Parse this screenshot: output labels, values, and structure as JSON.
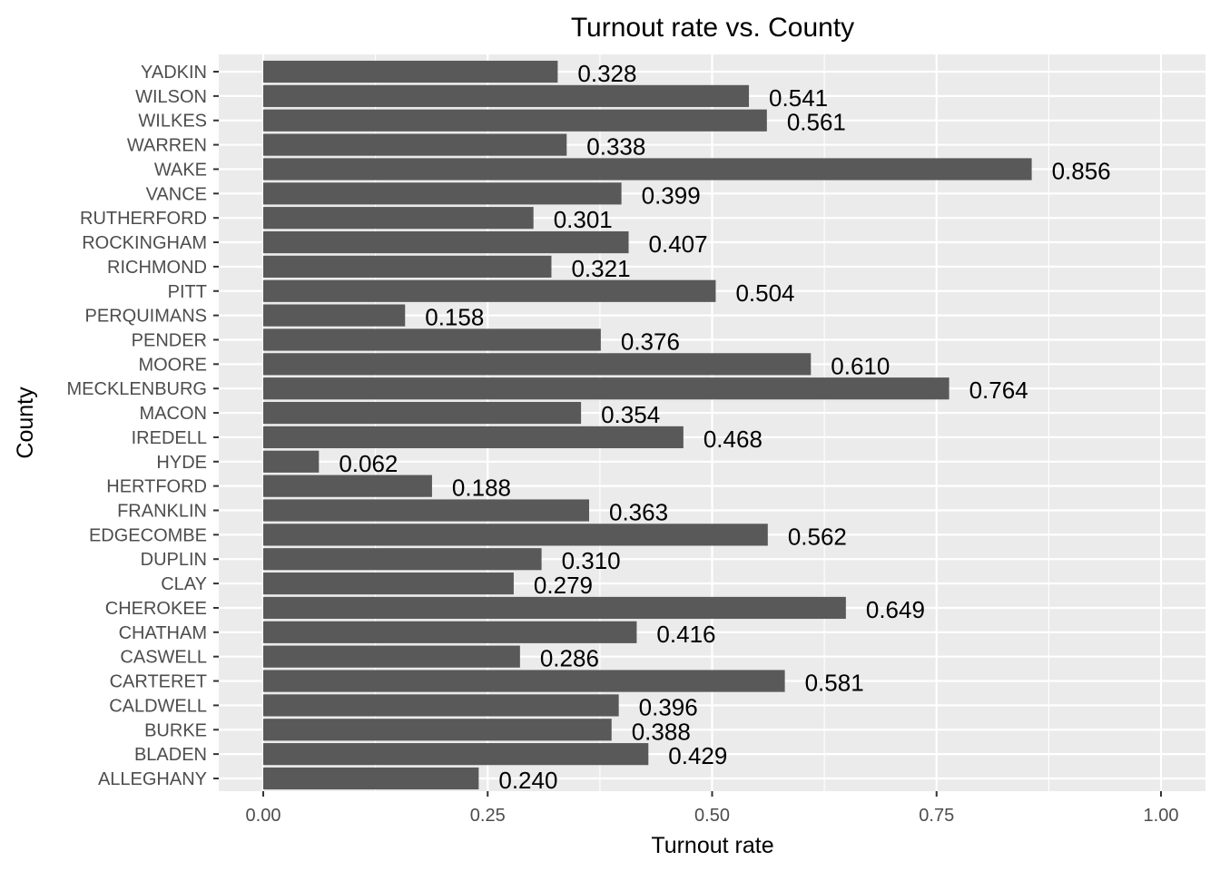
{
  "chart_data": {
    "type": "bar",
    "orientation": "horizontal",
    "title": "Turnout rate vs. County",
    "xlabel": "Turnout rate",
    "ylabel": "County",
    "xlim": [
      0,
      1
    ],
    "x_ticks": [
      0,
      0.25,
      0.5,
      0.75,
      1
    ],
    "x_tick_labels": [
      "0.00",
      "0.25",
      "0.50",
      "0.75",
      "1.00"
    ],
    "grid": true,
    "legend": "none",
    "colors": {
      "bar": "#595959",
      "panel": "#ebebeb",
      "grid": "#ffffff"
    },
    "categories": [
      "ALLEGHANY",
      "BLADEN",
      "BURKE",
      "CALDWELL",
      "CARTERET",
      "CASWELL",
      "CHATHAM",
      "CHEROKEE",
      "CLAY",
      "DUPLIN",
      "EDGECOMBE",
      "FRANKLIN",
      "HERTFORD",
      "HYDE",
      "IREDELL",
      "MACON",
      "MECKLENBURG",
      "MOORE",
      "PENDER",
      "PERQUIMANS",
      "PITT",
      "RICHMOND",
      "ROCKINGHAM",
      "RUTHERFORD",
      "VANCE",
      "WAKE",
      "WARREN",
      "WILKES",
      "WILSON",
      "YADKIN"
    ],
    "values": [
      0.24,
      0.429,
      0.388,
      0.396,
      0.581,
      0.286,
      0.416,
      0.649,
      0.279,
      0.31,
      0.562,
      0.363,
      0.188,
      0.062,
      0.468,
      0.354,
      0.764,
      0.61,
      0.376,
      0.158,
      0.504,
      0.321,
      0.407,
      0.301,
      0.399,
      0.856,
      0.338,
      0.561,
      0.541,
      0.328
    ],
    "value_labels": [
      "0.240",
      "0.429",
      "0.388",
      "0.396",
      "0.581",
      "0.286",
      "0.416",
      "0.649",
      "0.279",
      "0.310",
      "0.562",
      "0.363",
      "0.188",
      "0.062",
      "0.468",
      "0.354",
      "0.764",
      "0.610",
      "0.376",
      "0.158",
      "0.504",
      "0.321",
      "0.407",
      "0.301",
      "0.399",
      "0.856",
      "0.338",
      "0.561",
      "0.541",
      "0.328"
    ]
  }
}
